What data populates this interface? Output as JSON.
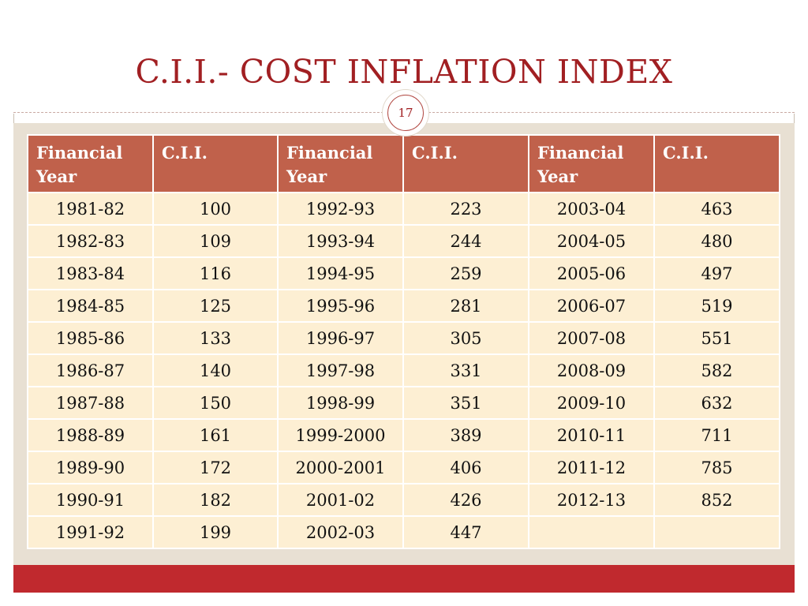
{
  "slide": {
    "title": "C.I.I.- COST INFLATION INDEX",
    "page_number": "17",
    "colors": {
      "title": "#a11f22",
      "header_fill": "#c0614b",
      "row_fill": "#fdefd3",
      "footer_bar": "#c0292e"
    }
  },
  "table": {
    "headers": [
      "Financial Year",
      "C.I.I.",
      "Financial Year",
      "C.I.I.",
      "Financial Year",
      "C.I.I."
    ],
    "rows": [
      [
        "1981-82",
        "100",
        "1992-93",
        "223",
        "2003-04",
        "463"
      ],
      [
        "1982-83",
        "109",
        "1993-94",
        "244",
        "2004-05",
        "480"
      ],
      [
        "1983-84",
        "116",
        "1994-95",
        "259",
        "2005-06",
        "497"
      ],
      [
        "1984-85",
        "125",
        "1995-96",
        "281",
        "2006-07",
        "519"
      ],
      [
        "1985-86",
        "133",
        "1996-97",
        "305",
        "2007-08",
        "551"
      ],
      [
        "1986-87",
        "140",
        "1997-98",
        "331",
        "2008-09",
        "582"
      ],
      [
        "1987-88",
        "150",
        "1998-99",
        "351",
        "2009-10",
        "632"
      ],
      [
        "1988-89",
        "161",
        "1999-2000",
        "389",
        "2010-11",
        "711"
      ],
      [
        "1989-90",
        "172",
        "2000-2001",
        "406",
        "2011-12",
        "785"
      ],
      [
        "1990-91",
        "182",
        "2001-02",
        "426",
        "2012-13",
        "852"
      ],
      [
        "1991-92",
        "199",
        "2002-03",
        "447",
        "",
        ""
      ]
    ]
  }
}
